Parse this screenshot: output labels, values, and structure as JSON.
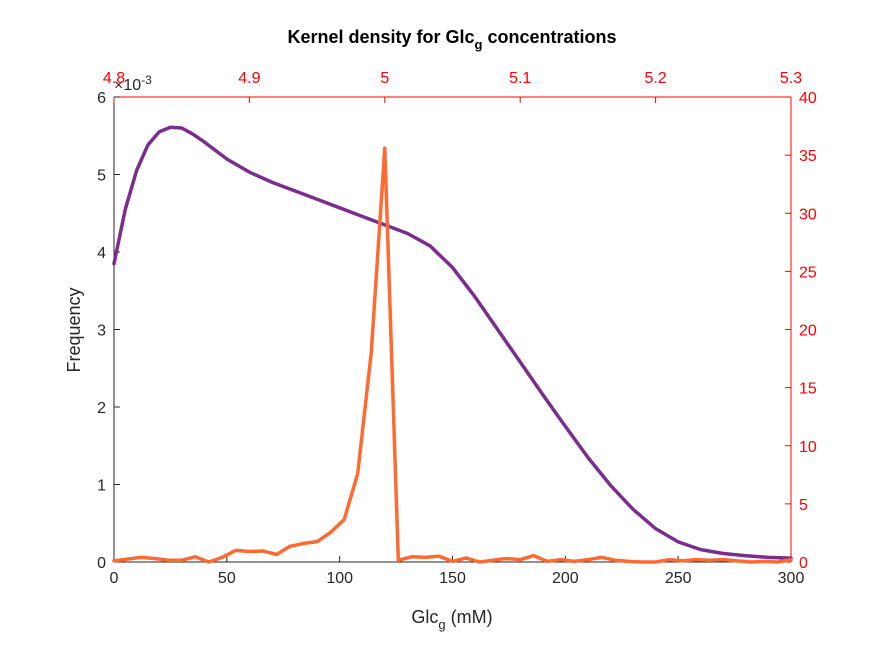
{
  "chart_data": {
    "type": "line",
    "title_main": "Kernel density for Glc",
    "title_sub": "g",
    "title_suffix": " concentrations",
    "xlabel_main": "Glc",
    "xlabel_sub": "g",
    "xlabel_suffix": " (mM)",
    "ylabel": "Frequency",
    "y_exponent_label": "×10",
    "y_exponent_power": "-3",
    "x_bottom": {
      "range": [
        0,
        300
      ],
      "ticks": [
        "0",
        "50",
        "100",
        "150",
        "200",
        "250",
        "300"
      ],
      "tick_values": [
        0,
        50,
        100,
        150,
        200,
        250,
        300
      ]
    },
    "x_top": {
      "range": [
        4.8,
        5.3
      ],
      "ticks": [
        "4.8",
        "4.9",
        "5",
        "5.1",
        "5.2",
        "5.3"
      ],
      "tick_values": [
        4.8,
        4.9,
        5.0,
        5.1,
        5.2,
        5.3
      ],
      "color": "#ff0000"
    },
    "y_left": {
      "range": [
        0,
        6
      ],
      "ticks": [
        "0",
        "1",
        "2",
        "3",
        "4",
        "5",
        "6"
      ],
      "tick_values": [
        0,
        1,
        2,
        3,
        4,
        5,
        6
      ],
      "scale_note": "values ×10^-3"
    },
    "y_right": {
      "range": [
        0,
        40
      ],
      "ticks": [
        "0",
        "5",
        "10",
        "15",
        "20",
        "25",
        "30",
        "35",
        "40"
      ],
      "tick_values": [
        0,
        5,
        10,
        15,
        20,
        25,
        30,
        35,
        40
      ],
      "color": "#ff0000"
    },
    "series": [
      {
        "axes": "bottom-left",
        "color": "#7b2d8e",
        "x": [
          0,
          5,
          10,
          15,
          20,
          25,
          30,
          35,
          40,
          50,
          60,
          70,
          80,
          90,
          100,
          110,
          120,
          130,
          140,
          150,
          160,
          170,
          180,
          190,
          200,
          210,
          220,
          230,
          240,
          250,
          260,
          270,
          280,
          290,
          300
        ],
        "y": [
          3.85,
          4.55,
          5.05,
          5.38,
          5.55,
          5.61,
          5.6,
          5.52,
          5.42,
          5.2,
          5.03,
          4.9,
          4.79,
          4.68,
          4.57,
          4.46,
          4.35,
          4.24,
          4.08,
          3.8,
          3.42,
          3.0,
          2.58,
          2.16,
          1.75,
          1.35,
          0.99,
          0.68,
          0.43,
          0.26,
          0.16,
          0.11,
          0.08,
          0.06,
          0.05
        ]
      },
      {
        "axes": "top-right",
        "color": "#ff6a33",
        "x": [
          4.8,
          4.81,
          4.82,
          4.83,
          4.84,
          4.85,
          4.86,
          4.87,
          4.88,
          4.89,
          4.9,
          4.91,
          4.92,
          4.93,
          4.94,
          4.95,
          4.96,
          4.97,
          4.98,
          4.99,
          5.0,
          5.01,
          5.02,
          5.03,
          5.04,
          5.05,
          5.06,
          5.07,
          5.08,
          5.09,
          5.1,
          5.11,
          5.12,
          5.13,
          5.14,
          5.15,
          5.16,
          5.17,
          5.18,
          5.19,
          5.2,
          5.21,
          5.22,
          5.23,
          5.24,
          5.25,
          5.26,
          5.27,
          5.28,
          5.29,
          5.3
        ],
        "y": [
          0.1,
          0.25,
          0.4,
          0.3,
          0.15,
          0.15,
          0.45,
          0.0,
          0.4,
          1.0,
          0.9,
          0.95,
          0.65,
          1.35,
          1.6,
          1.75,
          2.55,
          3.65,
          7.6,
          18.0,
          35.6,
          0.15,
          0.45,
          0.4,
          0.5,
          0.05,
          0.35,
          0.0,
          0.15,
          0.3,
          0.2,
          0.55,
          0.05,
          0.2,
          0.05,
          0.2,
          0.4,
          0.15,
          0.05,
          0.0,
          0.0,
          0.2,
          0.1,
          0.2,
          0.15,
          0.2,
          0.1,
          0.0,
          0.05,
          0.0,
          0.2
        ]
      }
    ]
  }
}
